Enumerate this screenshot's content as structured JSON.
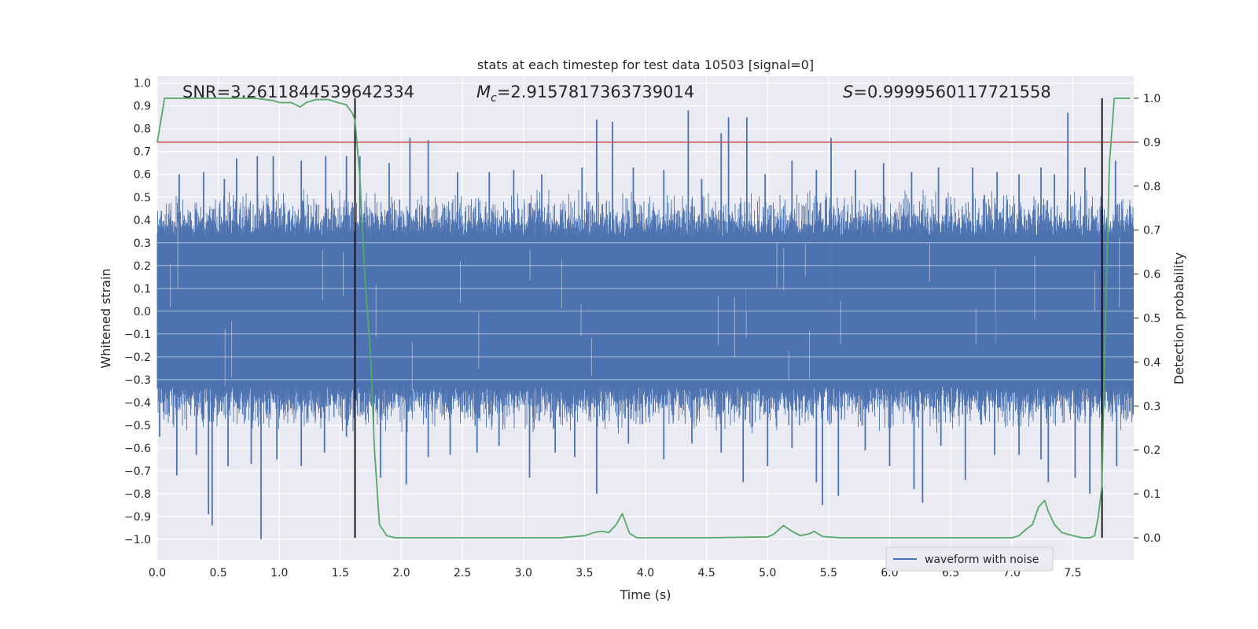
{
  "chart_data": {
    "type": "line",
    "title": "stats at each timestep for test data 10503 [signal=0]",
    "xlabel": "Time (s)",
    "ylabel_left": "Whitened strain",
    "ylabel_right": "Detection probability",
    "xlim": [
      0.0,
      8.0
    ],
    "ylim_left": [
      -1.09,
      1.03
    ],
    "ylim_right": [
      -0.05,
      1.05
    ],
    "x_ticks": [
      "0.0",
      "0.5",
      "1.0",
      "1.5",
      "2.0",
      "2.5",
      "3.0",
      "3.5",
      "4.0",
      "4.5",
      "5.0",
      "5.5",
      "6.0",
      "6.5",
      "7.0",
      "7.5"
    ],
    "y_left_ticks": [
      "1.0",
      "0.9",
      "0.8",
      "0.7",
      "0.6",
      "0.5",
      "0.4",
      "0.3",
      "0.2",
      "0.1",
      "0.0",
      "-0.1",
      "-0.2",
      "-0.3",
      "-0.4",
      "-0.5",
      "-0.6",
      "-0.7",
      "-0.8",
      "-0.9",
      "-1.0"
    ],
    "y_right_ticks": [
      "1.0",
      "0.9",
      "0.8",
      "0.7",
      "0.6",
      "0.5",
      "0.4",
      "0.3",
      "0.2",
      "0.1",
      "0.0"
    ],
    "grid": true,
    "annotations": {
      "snr": "SNR=3.2611844539642334",
      "mc_symbol": "M",
      "mc_subscript": "c",
      "mc_value": "=2.9157817363739014",
      "s_symbol": "S",
      "s_value": "=0.9999560117721558"
    },
    "threshold": {
      "value": 0.9,
      "color": "#c44e52"
    },
    "vertical_markers": [
      1.62,
      7.74
    ],
    "legend": {
      "label": "waveform with noise",
      "position": "lower-right"
    },
    "series": [
      {
        "name": "waveform with noise",
        "axis": "left",
        "color": "#4c72b0",
        "envelope": {
          "core": 0.33,
          "typical_peak": 0.48,
          "notch_count": 30
        },
        "spikes": [
          {
            "x": 0.18,
            "y": 0.6
          },
          {
            "x": 0.38,
            "y": 0.61
          },
          {
            "x": 0.55,
            "y": 0.58
          },
          {
            "x": 0.65,
            "y": 0.67
          },
          {
            "x": 0.82,
            "y": 0.68
          },
          {
            "x": 0.95,
            "y": 0.68
          },
          {
            "x": 1.18,
            "y": 0.66
          },
          {
            "x": 1.38,
            "y": 0.68
          },
          {
            "x": 1.55,
            "y": 0.68
          },
          {
            "x": 1.66,
            "y": 0.68
          },
          {
            "x": 1.9,
            "y": 0.65
          },
          {
            "x": 2.07,
            "y": 0.76
          },
          {
            "x": 2.22,
            "y": 0.75
          },
          {
            "x": 2.46,
            "y": 0.61
          },
          {
            "x": 2.72,
            "y": 0.61
          },
          {
            "x": 2.92,
            "y": 0.62
          },
          {
            "x": 3.15,
            "y": 0.6
          },
          {
            "x": 3.48,
            "y": 0.63
          },
          {
            "x": 3.6,
            "y": 0.84
          },
          {
            "x": 3.73,
            "y": 0.83
          },
          {
            "x": 3.9,
            "y": 0.63
          },
          {
            "x": 4.15,
            "y": 0.62
          },
          {
            "x": 4.35,
            "y": 0.88
          },
          {
            "x": 4.46,
            "y": 0.58
          },
          {
            "x": 4.62,
            "y": 0.78
          },
          {
            "x": 4.68,
            "y": 0.85
          },
          {
            "x": 4.83,
            "y": 0.85
          },
          {
            "x": 4.98,
            "y": 0.6
          },
          {
            "x": 5.2,
            "y": 0.66
          },
          {
            "x": 5.4,
            "y": 0.62
          },
          {
            "x": 5.52,
            "y": 0.76
          },
          {
            "x": 5.72,
            "y": 0.62
          },
          {
            "x": 5.95,
            "y": 0.65
          },
          {
            "x": 6.18,
            "y": 0.61
          },
          {
            "x": 6.4,
            "y": 0.63
          },
          {
            "x": 6.68,
            "y": 0.63
          },
          {
            "x": 6.88,
            "y": 0.61
          },
          {
            "x": 7.06,
            "y": 0.6
          },
          {
            "x": 7.24,
            "y": 0.63
          },
          {
            "x": 7.35,
            "y": 0.6
          },
          {
            "x": 7.46,
            "y": 0.87
          },
          {
            "x": 7.6,
            "y": 0.63
          },
          {
            "x": 7.85,
            "y": 0.66
          },
          {
            "x": 0.02,
            "y": -0.55
          },
          {
            "x": 0.16,
            "y": -0.72
          },
          {
            "x": 0.32,
            "y": -0.63
          },
          {
            "x": 0.42,
            "y": -0.89
          },
          {
            "x": 0.45,
            "y": -0.94
          },
          {
            "x": 0.58,
            "y": -0.68
          },
          {
            "x": 0.77,
            "y": -0.67
          },
          {
            "x": 0.85,
            "y": -1.0
          },
          {
            "x": 0.98,
            "y": -0.65
          },
          {
            "x": 1.18,
            "y": -0.68
          },
          {
            "x": 1.37,
            "y": -0.62
          },
          {
            "x": 1.55,
            "y": -0.55
          },
          {
            "x": 1.83,
            "y": -0.73
          },
          {
            "x": 2.04,
            "y": -0.76
          },
          {
            "x": 2.22,
            "y": -0.64
          },
          {
            "x": 2.4,
            "y": -0.63
          },
          {
            "x": 2.62,
            "y": -0.62
          },
          {
            "x": 2.8,
            "y": -0.59
          },
          {
            "x": 3.05,
            "y": -0.73
          },
          {
            "x": 3.26,
            "y": -0.62
          },
          {
            "x": 3.42,
            "y": -0.64
          },
          {
            "x": 3.6,
            "y": -0.8
          },
          {
            "x": 3.86,
            "y": -0.58
          },
          {
            "x": 4.15,
            "y": -0.65
          },
          {
            "x": 4.38,
            "y": -0.58
          },
          {
            "x": 4.62,
            "y": -0.62
          },
          {
            "x": 4.8,
            "y": -0.75
          },
          {
            "x": 5.0,
            "y": -0.68
          },
          {
            "x": 5.2,
            "y": -0.6
          },
          {
            "x": 5.4,
            "y": -0.75
          },
          {
            "x": 5.45,
            "y": -0.85
          },
          {
            "x": 5.58,
            "y": -0.81
          },
          {
            "x": 5.8,
            "y": -0.61
          },
          {
            "x": 6.0,
            "y": -0.68
          },
          {
            "x": 6.2,
            "y": -0.78
          },
          {
            "x": 6.27,
            "y": -0.84
          },
          {
            "x": 6.42,
            "y": -0.59
          },
          {
            "x": 6.62,
            "y": -0.74
          },
          {
            "x": 6.86,
            "y": -0.63
          },
          {
            "x": 7.06,
            "y": -0.63
          },
          {
            "x": 7.24,
            "y": -0.65
          },
          {
            "x": 7.3,
            "y": -0.75
          },
          {
            "x": 7.52,
            "y": -0.73
          },
          {
            "x": 7.64,
            "y": -0.8
          },
          {
            "x": 7.86,
            "y": -0.68
          }
        ]
      },
      {
        "name": "detection probability",
        "axis": "right",
        "color": "#55a868",
        "x": [
          0.0,
          0.06,
          0.2,
          0.5,
          0.8,
          0.95,
          1.0,
          1.1,
          1.17,
          1.22,
          1.3,
          1.4,
          1.48,
          1.55,
          1.6,
          1.62,
          1.66,
          1.7,
          1.75,
          1.78,
          1.82,
          1.88,
          1.95,
          2.1,
          2.5,
          3.0,
          3.3,
          3.5,
          3.58,
          3.64,
          3.7,
          3.76,
          3.81,
          3.87,
          3.93,
          4.0,
          4.5,
          5.0,
          5.05,
          5.13,
          5.2,
          5.27,
          5.35,
          5.38,
          5.45,
          5.6,
          6.0,
          6.5,
          7.0,
          7.06,
          7.12,
          7.17,
          7.22,
          7.27,
          7.3,
          7.35,
          7.41,
          7.5,
          7.58,
          7.64,
          7.68,
          7.71,
          7.74,
          7.76,
          7.8,
          7.84,
          7.9,
          7.97
        ],
        "values": [
          0.9,
          1.0,
          1.0,
          1.0,
          1.0,
          0.995,
          0.99,
          0.99,
          0.98,
          0.99,
          0.997,
          0.997,
          0.99,
          0.985,
          0.965,
          0.95,
          0.82,
          0.6,
          0.4,
          0.2,
          0.03,
          0.005,
          0.0,
          0.0,
          0.0,
          0.0,
          0.0,
          0.005,
          0.012,
          0.015,
          0.012,
          0.03,
          0.055,
          0.01,
          0.0,
          0.0,
          0.0,
          0.002,
          0.008,
          0.028,
          0.015,
          0.005,
          0.01,
          0.015,
          0.003,
          0.0,
          0.0,
          0.0,
          0.0,
          0.005,
          0.02,
          0.03,
          0.07,
          0.085,
          0.06,
          0.03,
          0.012,
          0.005,
          0.0,
          0.0,
          0.005,
          0.05,
          0.12,
          0.4,
          0.85,
          1.0,
          1.0,
          1.0
        ]
      }
    ]
  }
}
